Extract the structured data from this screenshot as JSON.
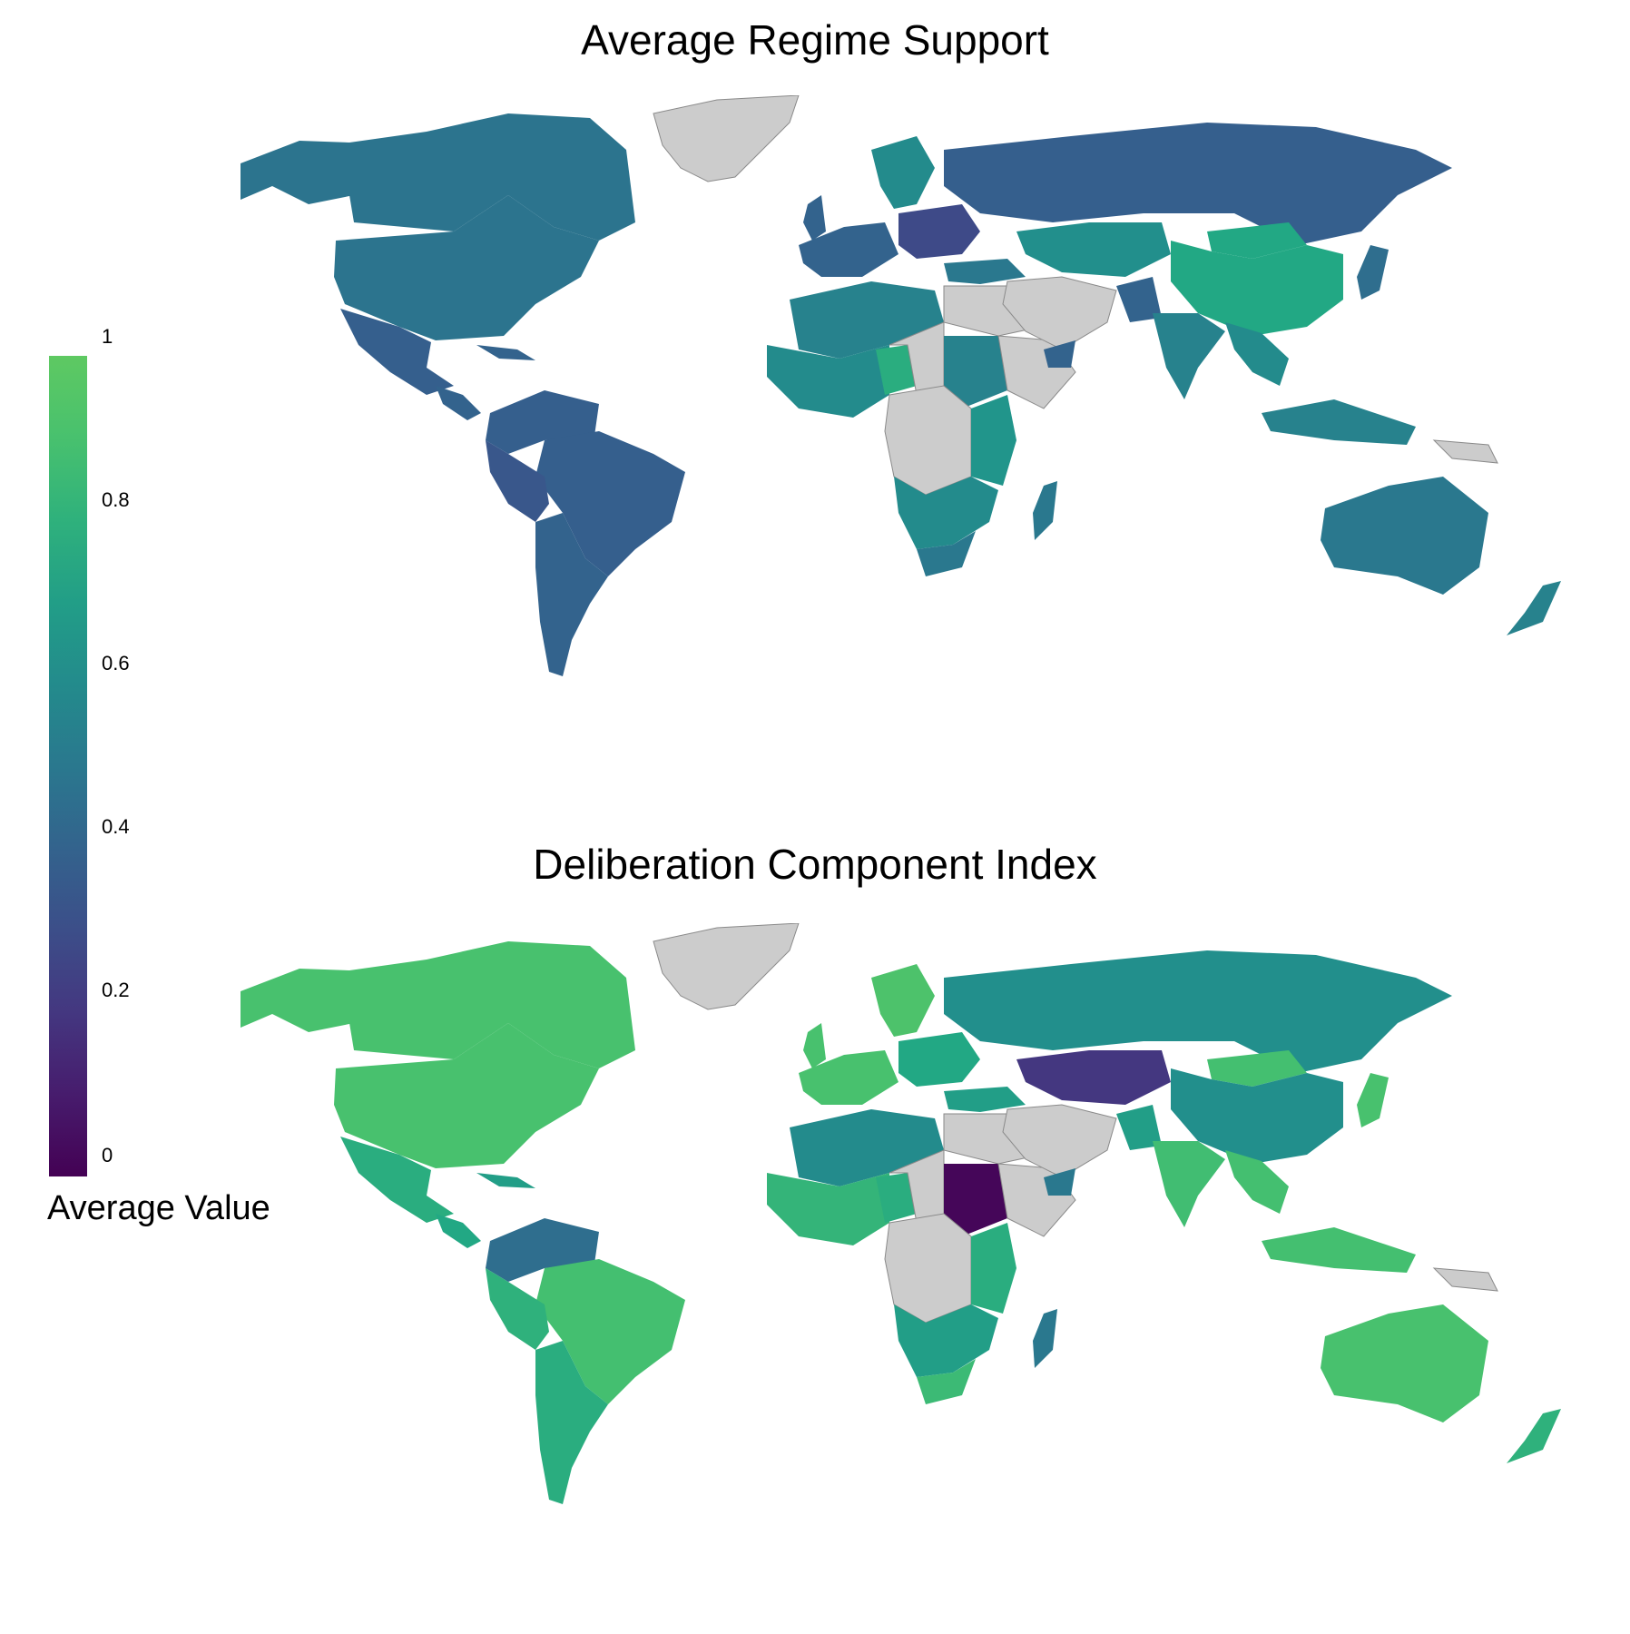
{
  "title_top": "Average Regime Support",
  "title_bottom": "Deliberation Component Index",
  "legend": {
    "title": "Average Value",
    "ticks": [
      "1",
      "0.8",
      "0.6",
      "0.4",
      "0.2",
      "0"
    ],
    "scale_min": 0,
    "scale_max": 1,
    "colormap": "viridis",
    "color_low": "#440154",
    "color_high": "#5ec962",
    "nodata_color": "#cccccc"
  },
  "maps": {
    "regime_support": {
      "north_america": 0.48,
      "canada": 0.48,
      "alaska": 0.48,
      "mexico": 0.38,
      "central_america": 0.4,
      "cuba": 0.4,
      "south_america": 0.38,
      "colombia_venezuela": 0.38,
      "peru": 0.34,
      "argentina_chile": 0.4,
      "scandinavia": 0.6,
      "western_europe": 0.4,
      "uk": 0.4,
      "eastern_europe": 0.28,
      "russia": 0.38,
      "turkey": 0.5,
      "central_asia": 0.62,
      "china": 0.75,
      "mongolia": 0.75,
      "india": 0.55,
      "pakistan": 0.4,
      "southeast_asia": 0.6,
      "indonesia": 0.55,
      "japan": 0.45,
      "north_africa": 0.55,
      "west_africa": 0.6,
      "nigeria": 0.78,
      "sudan": 0.55,
      "east_africa": 0.65,
      "southern_africa": 0.6,
      "south_africa": 0.5,
      "madagascar": 0.5,
      "yemen": 0.4,
      "australia": 0.5,
      "new_zealand": 0.55
    },
    "deliberation": {
      "north_america": 0.9,
      "canada": 0.9,
      "alaska": 0.9,
      "mexico": 0.78,
      "central_america": 0.75,
      "cuba": 0.7,
      "south_america": 0.88,
      "colombia_venezuela": 0.45,
      "peru": 0.8,
      "argentina_chile": 0.78,
      "scandinavia": 0.92,
      "western_europe": 0.9,
      "uk": 0.9,
      "eastern_europe": 0.75,
      "russia": 0.62,
      "turkey": 0.7,
      "central_asia": 0.2,
      "china": 0.62,
      "mongolia": 0.88,
      "india": 0.87,
      "pakistan": 0.7,
      "southeast_asia": 0.88,
      "indonesia": 0.88,
      "japan": 0.9,
      "north_africa": 0.6,
      "west_africa": 0.82,
      "nigeria": 0.78,
      "sudan": 0.02,
      "east_africa": 0.78,
      "southern_africa": 0.7,
      "south_africa": 0.85,
      "madagascar": 0.5,
      "yemen": 0.5,
      "australia": 0.9,
      "new_zealand": 0.8
    }
  }
}
